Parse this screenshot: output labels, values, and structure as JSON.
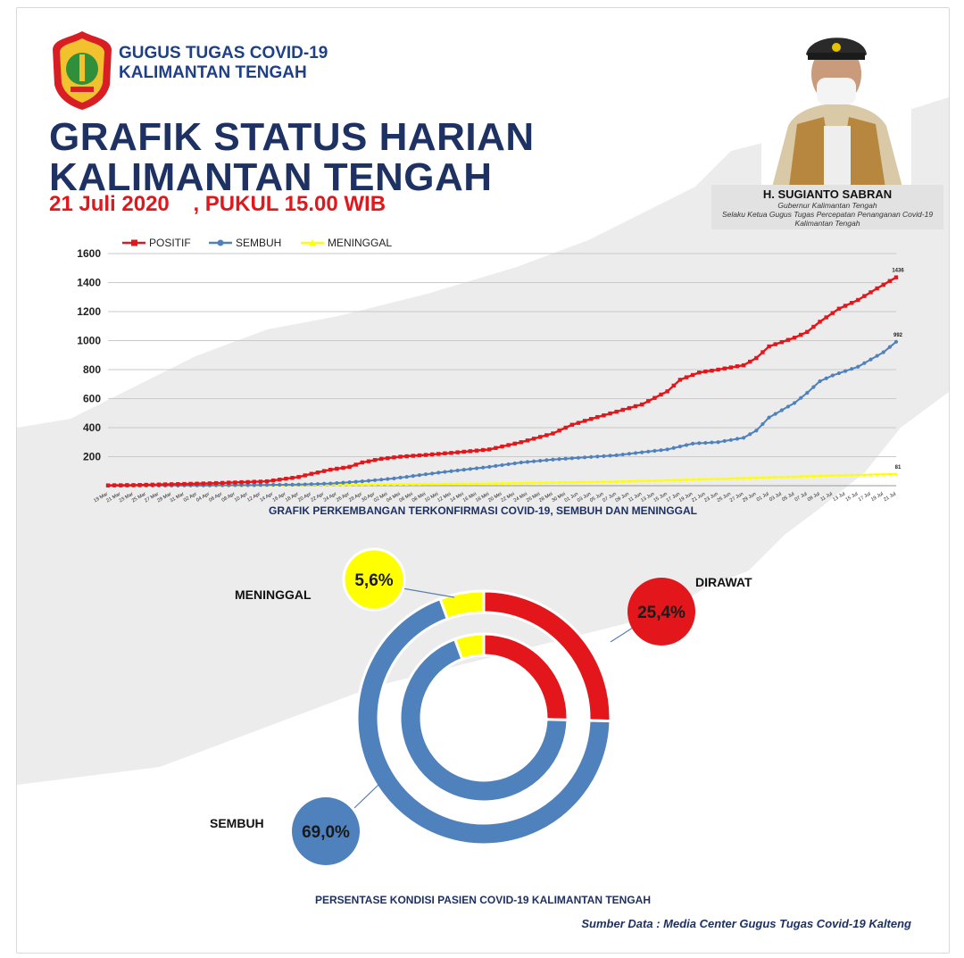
{
  "header": {
    "org_line1": "GUGUS TUGAS COVID-19",
    "org_line2": "KALIMANTAN TENGAH",
    "title_line1": "GRAFIK STATUS HARIAN",
    "title_line2": "KALIMANTAN TENGAH",
    "date": "21 Juli 2020    , PUKUL 15.00 WIB",
    "logo_icon": "provincial-emblem-icon"
  },
  "governor": {
    "name": "H. SUGIANTO SABRAN",
    "role_line1": "Gubernur Kalimantan Tengah",
    "role_line2": "Selaku Ketua Gugus Tugas Percepatan Penanganan Covid-19",
    "role_line3": "Kalimantan Tengah"
  },
  "colors": {
    "positif": "#e3161b",
    "sembuh": "#4f81bd",
    "meninggal": "#ffff00",
    "title": "#1e3163"
  },
  "chart_data": [
    {
      "type": "line",
      "title": "GRAFIK PERKEMBANGAN TERKONFIRMASI COVID-19, SEMBUH DAN MENINGGAL",
      "ylim": [
        0,
        1600
      ],
      "yticks": [
        200,
        400,
        600,
        800,
        1000,
        1200,
        1400,
        1600
      ],
      "grid": true,
      "legend_position": "top-left",
      "x_tick_labels": [
        "19 Mar",
        "21 Mar",
        "23 Mar",
        "25 Mar",
        "27 Mar",
        "29 Mar",
        "31 Mar",
        "02 Apr",
        "04 Apr",
        "06 Apr",
        "08 Apr",
        "10 Apr",
        "12 Apr",
        "14 Apr",
        "16 Apr",
        "18 Apr",
        "20 Apr",
        "22 Apr",
        "24 Apr",
        "26 Apr",
        "28 Apr",
        "30 Apr",
        "02 Mei",
        "04 Mei",
        "06 Mei",
        "08 Mei",
        "10 Mei",
        "12 Mei",
        "14 Mei",
        "16 Mei",
        "18 Mei",
        "20 Mei",
        "22 Mei",
        "24 Mei",
        "26 Mei",
        "28 Mei",
        "30 Mei",
        "01 Jun",
        "03 Jun",
        "05 Jun",
        "07 Jun",
        "09 Jun",
        "11 Jun",
        "13 Jun",
        "15 Jun",
        "17 Jun",
        "19 Jun",
        "21 Jun",
        "23 Jun",
        "25 Jun",
        "27 Jun",
        "29 Jun",
        "01 Jul",
        "03 Jul",
        "05 Jul",
        "07 Jul",
        "09 Jul",
        "11 Jul",
        "13 Jul",
        "15 Jul",
        "17 Jul",
        "19 Jul",
        "21 Jul"
      ],
      "series": [
        {
          "name": "POSITIF",
          "key_days": [
            0,
            5,
            10,
            15,
            20,
            25,
            30,
            32,
            35,
            38,
            40,
            43,
            46,
            50,
            55,
            60,
            65,
            70,
            73,
            76,
            80,
            84,
            88,
            90,
            93,
            96,
            100,
            102,
            104,
            108,
            110,
            112,
            115,
            118,
            121,
            124
          ],
          "key_values": [
            2,
            5,
            10,
            15,
            22,
            30,
            60,
            82,
            110,
            130,
            160,
            185,
            200,
            212,
            230,
            250,
            300,
            360,
            420,
            460,
            510,
            560,
            650,
            730,
            780,
            800,
            830,
            880,
            960,
            1020,
            1060,
            1130,
            1220,
            1280,
            1360,
            1436
          ]
        },
        {
          "name": "SEMBUH",
          "key_days": [
            0,
            15,
            25,
            30,
            35,
            40,
            45,
            52,
            56,
            60,
            65,
            70,
            80,
            88,
            92,
            96,
            100,
            102,
            104,
            106,
            108,
            110,
            112,
            114,
            116,
            118,
            120,
            122,
            124
          ],
          "key_values": [
            0,
            2,
            5,
            8,
            15,
            30,
            50,
            90,
            110,
            130,
            160,
            180,
            210,
            250,
            290,
            300,
            330,
            380,
            470,
            520,
            570,
            640,
            720,
            760,
            790,
            820,
            870,
            920,
            992
          ]
        },
        {
          "name": "MENINGGAL",
          "key_days": [
            0,
            20,
            40,
            60,
            80,
            100,
            110,
            124
          ],
          "key_values": [
            0,
            2,
            8,
            15,
            28,
            52,
            65,
            81
          ]
        }
      ],
      "end_labels": [
        "1436",
        "992",
        "81"
      ]
    },
    {
      "type": "pie",
      "title": "PERSENTASE KONDISI PASIEN COVID-19 KALIMANTAN TENGAH",
      "categories": [
        "DIRAWAT",
        "SEMBUH",
        "MENINGGAL"
      ],
      "values": [
        25.4,
        69.0,
        5.6
      ],
      "labels": [
        "25,4%",
        "69,0%",
        "5,6%"
      ]
    }
  ],
  "source": "Sumber Data : Media Center Gugus Tugas Covid-19 Kalteng"
}
